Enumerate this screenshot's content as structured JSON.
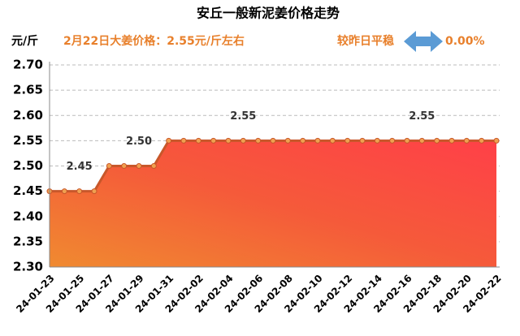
{
  "chart_data": {
    "type": "area",
    "title": "安丘一般新泥姜价格走势",
    "y_label": "元/斤",
    "subtitle": "2月22日大姜价格：2.55元/斤左右",
    "change_label": "较昨日平稳",
    "change_value": "0.00%",
    "categories": [
      "24-01-23",
      null,
      "24-01-25",
      null,
      "24-01-27",
      null,
      "24-01-29",
      null,
      "24-01-31",
      null,
      "24-02-02",
      null,
      "24-02-04",
      null,
      "24-02-06",
      null,
      "24-02-08",
      null,
      "24-02-10",
      null,
      "24-02-12",
      null,
      "24-02-14",
      null,
      "24-02-16",
      null,
      "24-02-18",
      null,
      "24-02-20",
      null,
      "24-02-22"
    ],
    "values": [
      2.45,
      2.45,
      2.45,
      2.45,
      2.5,
      2.5,
      2.5,
      2.5,
      2.55,
      2.55,
      2.55,
      2.55,
      2.55,
      2.55,
      2.55,
      2.55,
      2.55,
      2.55,
      2.55,
      2.55,
      2.55,
      2.55,
      2.55,
      2.55,
      2.55,
      2.55,
      2.55,
      2.55,
      2.55,
      2.55,
      2.55
    ],
    "value_labels": [
      null,
      null,
      "2.45",
      null,
      null,
      null,
      "2.50",
      null,
      null,
      null,
      null,
      null,
      null,
      "2.55",
      null,
      null,
      null,
      null,
      null,
      null,
      null,
      null,
      null,
      null,
      null,
      "2.55",
      null,
      null,
      null,
      null,
      null
    ],
    "color": "#c8572a",
    "marker_color": "#f0a050",
    "ylim": [
      2.3,
      2.7
    ],
    "yticks": [
      {
        "value": 2.3,
        "label": "2.30"
      },
      {
        "value": 2.35,
        "label": "2.35"
      },
      {
        "value": 2.4,
        "label": "2.40"
      },
      {
        "value": 2.45,
        "label": "2.45"
      },
      {
        "value": 2.5,
        "label": "2.50"
      },
      {
        "value": 2.55,
        "label": "2.55"
      },
      {
        "value": 2.6,
        "label": "2.60"
      },
      {
        "value": 2.65,
        "label": "2.65"
      },
      {
        "value": 2.7,
        "label": "2.70"
      }
    ],
    "grid": true
  }
}
